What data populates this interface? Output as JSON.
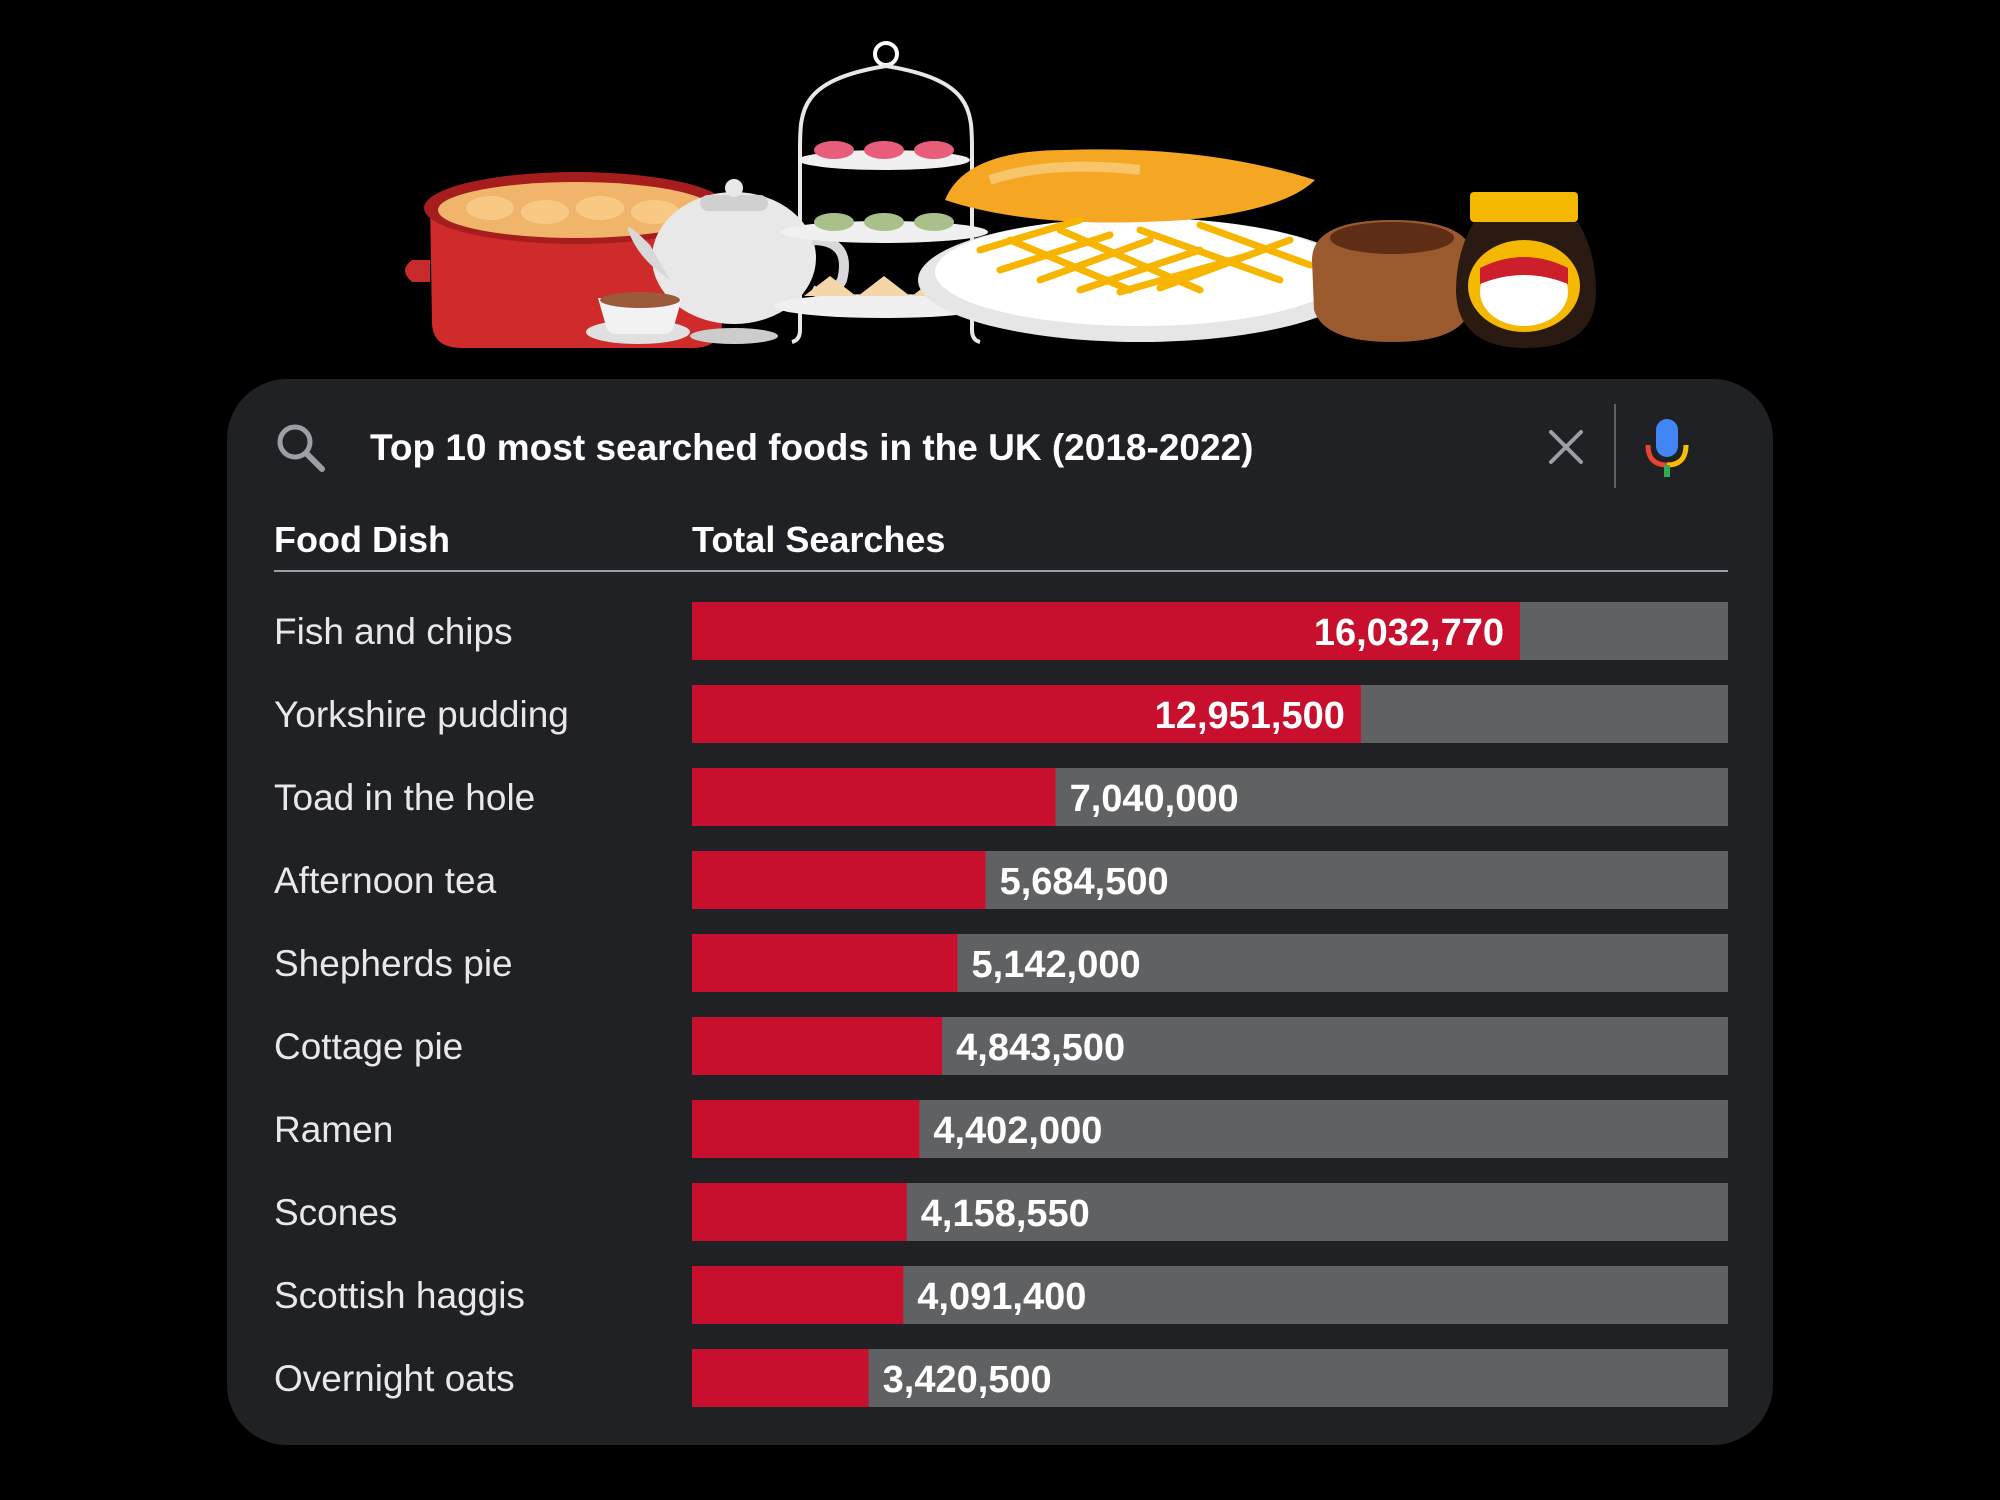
{
  "search": {
    "query": "Top 10 most searched foods in the UK (2018-2022)"
  },
  "table": {
    "col_food": "Food Dish",
    "col_total": "Total Searches"
  },
  "colors": {
    "bar_fill": "#c8102e",
    "bar_track": "#606163",
    "card_background": "#202124",
    "page_background": "#000000"
  },
  "icons": {
    "search": "search-icon",
    "clear": "close-icon",
    "voice": "microphone-icon"
  },
  "chart_data": {
    "type": "bar",
    "orientation": "horizontal",
    "categories": [
      "Fish and chips",
      "Yorkshire pudding",
      "Toad in the hole",
      "Afternoon tea",
      "Shepherds pie",
      "Cottage pie",
      "Ramen",
      "Scones",
      "Scottish haggis",
      "Overnight oats"
    ],
    "values": [
      16032770,
      12951500,
      7040000,
      5684500,
      5142000,
      4843500,
      4402000,
      4158550,
      4091400,
      3420500
    ],
    "value_labels": [
      "16,032,770",
      "12,951,500",
      "7,040,000",
      "5,684,500",
      "5,142,000",
      "4,843,500",
      "4,402,000",
      "4,158,550",
      "4,091,400",
      "3,420,500"
    ],
    "xlim": [
      0,
      20000000
    ],
    "grid": false,
    "legend": "none"
  }
}
